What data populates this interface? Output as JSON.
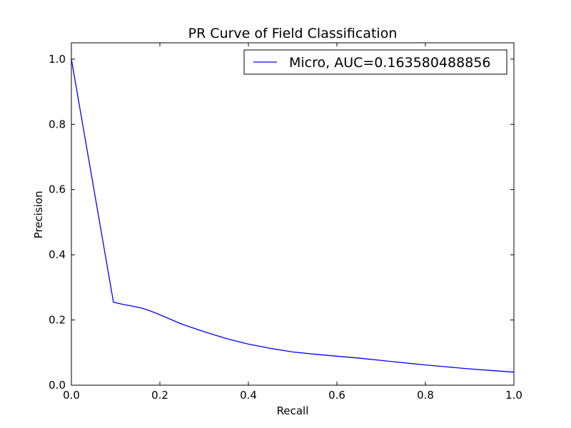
{
  "chart_data": {
    "type": "line",
    "title": "PR Curve of Field Classification",
    "xlabel": "Recall",
    "ylabel": "Precision",
    "xlim": [
      0.0,
      1.0
    ],
    "ylim": [
      0.0,
      1.05
    ],
    "xticks": [
      "0.0",
      "0.2",
      "0.4",
      "0.6",
      "0.8",
      "1.0"
    ],
    "yticks": [
      "0.0",
      "0.2",
      "0.4",
      "0.6",
      "0.8",
      "1.0"
    ],
    "xtick_values": [
      0.0,
      0.2,
      0.4,
      0.6,
      0.8,
      1.0
    ],
    "ytick_values": [
      0.0,
      0.2,
      0.4,
      0.6,
      0.8,
      1.0
    ],
    "grid": false,
    "legend_position": "top-right",
    "series": [
      {
        "name": "Micro, AUC=0.163580488856",
        "color": "#0000ff",
        "x": [
          0.0,
          0.095,
          0.1,
          0.12,
          0.14,
          0.16,
          0.18,
          0.2,
          0.25,
          0.3,
          0.35,
          0.4,
          0.45,
          0.5,
          0.55,
          0.6,
          0.65,
          0.7,
          0.75,
          0.8,
          0.85,
          0.9,
          0.95,
          1.0
        ],
        "y": [
          1.0,
          0.255,
          0.253,
          0.247,
          0.242,
          0.236,
          0.227,
          0.216,
          0.187,
          0.164,
          0.143,
          0.126,
          0.113,
          0.102,
          0.095,
          0.089,
          0.083,
          0.076,
          0.069,
          0.062,
          0.056,
          0.05,
          0.045,
          0.04
        ]
      }
    ]
  }
}
